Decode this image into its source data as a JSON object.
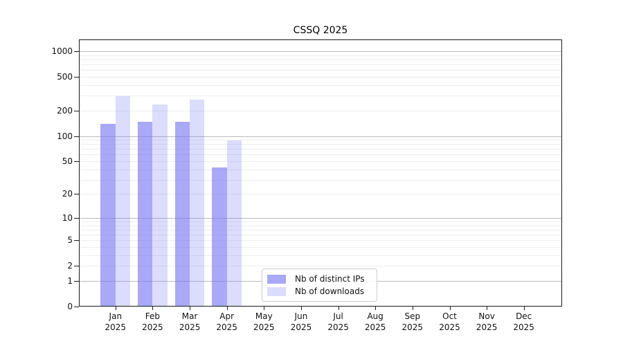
{
  "title": "CSSQ 2025",
  "colors": {
    "bar_ips": "#a9a9f5",
    "bar_downloads": "#dcdcf8",
    "bar_ips_rgba": "rgba(116,116,242,0.62)",
    "bar_downloads_rgba": "rgba(116,116,242,0.25)",
    "grid_major": "#bbbbbb",
    "grid_minor": "#ededed",
    "axis": "#1a1a1a",
    "text": "#111111"
  },
  "legend": {
    "items": [
      {
        "label": "Nb of distinct IPs",
        "color_key": "bar_ips_rgba"
      },
      {
        "label": "Nb of downloads",
        "color_key": "bar_downloads_rgba"
      }
    ]
  },
  "chart_data": {
    "type": "bar",
    "title": "CSSQ 2025",
    "x_tick_line1": [
      "Jan",
      "Feb",
      "Mar",
      "Apr",
      "May",
      "Jun",
      "Jul",
      "Aug",
      "Sep",
      "Oct",
      "Nov",
      "Dec"
    ],
    "x_tick_line2": "2025",
    "y_scale": "log10(1+y), zero at baseline",
    "y_ticks": [
      0,
      1,
      2,
      5,
      10,
      20,
      50,
      100,
      200,
      500,
      1000
    ],
    "ylim": [
      0,
      1375
    ],
    "grid": "horizontal, major at powers of ten + faint minors",
    "legend_position": "lower center-left inside plot",
    "series": [
      {
        "name": "Nb of distinct IPs",
        "values": [
          140,
          146,
          146,
          42,
          null,
          null,
          null,
          null,
          null,
          null,
          null,
          null
        ]
      },
      {
        "name": "Nb of downloads",
        "values": [
          295,
          237,
          269,
          88,
          null,
          null,
          null,
          null,
          null,
          null,
          null,
          null
        ]
      }
    ]
  }
}
